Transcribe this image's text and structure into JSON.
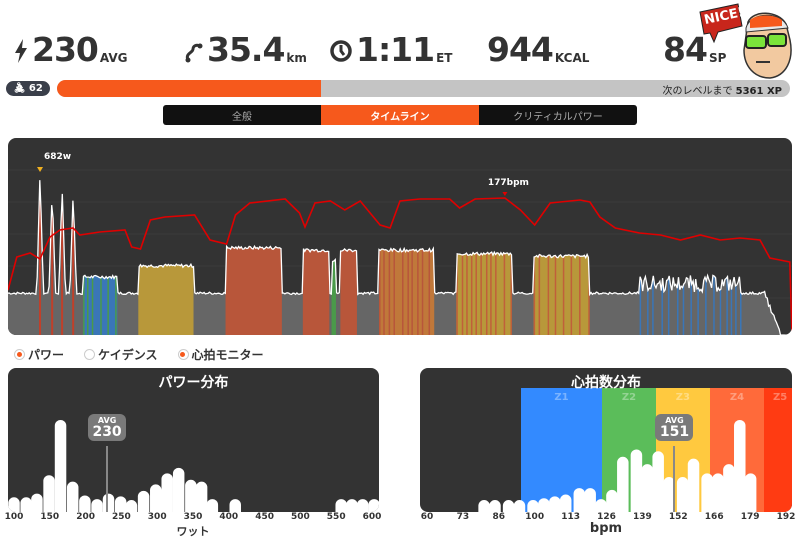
{
  "stats": [
    {
      "icon": "lightning-icon",
      "value": "230",
      "unit": "AVG"
    },
    {
      "icon": "route-icon",
      "value": "35.4",
      "unit": "km"
    },
    {
      "icon": "clock-icon",
      "value": "1:11",
      "unit": "ET"
    },
    {
      "icon": "",
      "value": "944",
      "unit": "KCAL"
    },
    {
      "icon": "",
      "value": "84",
      "unit": "SP"
    }
  ],
  "avatar_bubble": "NICE!",
  "level": {
    "value": "62",
    "icon": "cyclist-icon"
  },
  "xp": {
    "progress": 0.36,
    "label": "次のレベルまで",
    "value": "5361 XP"
  },
  "tabs": [
    {
      "label": "全般",
      "active": false
    },
    {
      "label": "タイムライン",
      "active": true
    },
    {
      "label": "クリティカルパワー",
      "active": false
    }
  ],
  "timeline": {
    "duration_min": 71,
    "peak_power_label": "682w",
    "peak_hr_label": "177bpm",
    "baseline_watts": 175,
    "sprints": [
      {
        "t": 2.9,
        "w": 682
      },
      {
        "t": 4.0,
        "w": 600
      },
      {
        "t": 4.9,
        "w": 620
      },
      {
        "t": 5.9,
        "w": 590
      }
    ],
    "blocks": [
      {
        "start": 6.8,
        "end": 9.9,
        "w": 243,
        "zone": "#3a76b8",
        "stripe": "#4a9a4a"
      },
      {
        "start": 11.8,
        "end": 16.8,
        "w": 290,
        "zone": "#b8983a"
      },
      {
        "start": 19.7,
        "end": 24.8,
        "w": 365,
        "zone": "#b8563a"
      },
      {
        "start": 26.7,
        "end": 29.1,
        "w": 355,
        "zone": "#b8563a"
      },
      {
        "start": 29.3,
        "end": 29.7,
        "w": 310,
        "zone": "#4a9a4a"
      },
      {
        "start": 30.1,
        "end": 31.6,
        "w": 355,
        "zone": "#b8563a"
      },
      {
        "start": 33.6,
        "end": 38.6,
        "w": 355,
        "zone": "#c0783a",
        "stripe": "#b8563a"
      },
      {
        "start": 40.6,
        "end": 45.6,
        "w": 340,
        "zone": "#b8983a",
        "stripe": "#c0603a"
      },
      {
        "start": 47.6,
        "end": 52.6,
        "w": 330,
        "zone": "#b8983a",
        "stripe": "#c0603a"
      },
      {
        "start": 57.2,
        "end": 66.3,
        "w": 215,
        "zone": "#666",
        "stripe": "#3a76b8",
        "noise": true
      }
    ],
    "end_drop_min": 68.5,
    "hr_series": [
      [
        0,
        85
      ],
      [
        0.8,
        118
      ],
      [
        2.0,
        122
      ],
      [
        2.9,
        116
      ],
      [
        3.8,
        138
      ],
      [
        4.7,
        145
      ],
      [
        5.9,
        147
      ],
      [
        6.5,
        140
      ],
      [
        8.3,
        143
      ],
      [
        10.6,
        145
      ],
      [
        11.2,
        128
      ],
      [
        12.0,
        126
      ],
      [
        12.9,
        155
      ],
      [
        14.2,
        158
      ],
      [
        16.9,
        160
      ],
      [
        18.3,
        135
      ],
      [
        19.8,
        131
      ],
      [
        20.6,
        160
      ],
      [
        21.9,
        172
      ],
      [
        25.1,
        176
      ],
      [
        26.4,
        162
      ],
      [
        26.9,
        148
      ],
      [
        27.8,
        172
      ],
      [
        29.2,
        174
      ],
      [
        30.5,
        165
      ],
      [
        31.9,
        174
      ],
      [
        33.7,
        150
      ],
      [
        34.6,
        147
      ],
      [
        35.5,
        174
      ],
      [
        37.3,
        176
      ],
      [
        40.0,
        176
      ],
      [
        40.9,
        167
      ],
      [
        42.3,
        176
      ],
      [
        45.0,
        177
      ],
      [
        46.4,
        165
      ],
      [
        47.7,
        150
      ],
      [
        49.1,
        172
      ],
      [
        51.8,
        175
      ],
      [
        52.7,
        173
      ],
      [
        53.6,
        158
      ],
      [
        55.0,
        147
      ],
      [
        57.2,
        142
      ],
      [
        59.1,
        140
      ],
      [
        60.9,
        135
      ],
      [
        62.7,
        140
      ],
      [
        64.5,
        135
      ],
      [
        66.3,
        137
      ],
      [
        68.1,
        135
      ],
      [
        69.0,
        117
      ],
      [
        69.9,
        115
      ],
      [
        70.8,
        113
      ],
      [
        71,
        40
      ]
    ],
    "colors": {
      "hr": "#e00000",
      "power": "#ffffff",
      "fill": "#666666"
    }
  },
  "legend": [
    {
      "label": "パワー",
      "checked": true
    },
    {
      "label": "ケイデンス",
      "checked": false
    },
    {
      "label": "心拍モニター",
      "checked": true
    }
  ],
  "power_dist": {
    "title": "パワー分布",
    "xlabel": "ワット",
    "ticks": [
      "100",
      "150",
      "200",
      "250",
      "300",
      "350",
      "400",
      "450",
      "500",
      "550",
      "600"
    ],
    "avg_label": "AVG",
    "avg": "230",
    "bins": [
      [
        100,
        0.16
      ],
      [
        117,
        0.16
      ],
      [
        132,
        0.2
      ],
      [
        149,
        0.4
      ],
      [
        165,
        1.0
      ],
      [
        182,
        0.33
      ],
      [
        199,
        0.18
      ],
      [
        216,
        0.14
      ],
      [
        232,
        0.2
      ],
      [
        249,
        0.17
      ],
      [
        264,
        0.13
      ],
      [
        281,
        0.23
      ],
      [
        298,
        0.3
      ],
      [
        314,
        0.42
      ],
      [
        330,
        0.48
      ],
      [
        347,
        0.35
      ],
      [
        362,
        0.33
      ],
      [
        377,
        0.14
      ],
      [
        409,
        0.14
      ],
      [
        557,
        0.14
      ],
      [
        572,
        0.14
      ],
      [
        587,
        0.14
      ],
      [
        603,
        0.14
      ]
    ]
  },
  "hr_dist": {
    "title": "心拍数分布",
    "xlabel": "bpm",
    "ticks": [
      "60",
      "73",
      "86",
      "100",
      "113",
      "126",
      "139",
      "152",
      "166",
      "179",
      "192"
    ],
    "avg_label": "AVG",
    "avg": "151",
    "zones": [
      {
        "label": "Z1",
        "from": 94.6,
        "to": 124.3,
        "color": "#338aff"
      },
      {
        "label": "Z2",
        "from": 124.3,
        "to": 144.2,
        "color": "#5bbd5a"
      },
      {
        "label": "Z3",
        "from": 144.2,
        "to": 164,
        "color": "#ffc93f"
      },
      {
        "label": "Z4",
        "from": 164,
        "to": 184,
        "color": "#ff6a3a"
      },
      {
        "label": "Z5",
        "from": 184,
        "to": 192,
        "color": "#ff3b12"
      }
    ],
    "bins": [
      [
        81,
        0.13
      ],
      [
        85,
        0.13
      ],
      [
        90,
        0.13
      ],
      [
        94,
        0.13
      ],
      [
        99,
        0.13
      ],
      [
        103,
        0.15
      ],
      [
        107,
        0.17
      ],
      [
        111,
        0.19
      ],
      [
        116,
        0.26
      ],
      [
        120,
        0.26
      ],
      [
        124,
        0.14
      ],
      [
        128,
        0.24
      ],
      [
        132,
        0.6
      ],
      [
        137,
        0.68
      ],
      [
        141,
        0.52
      ],
      [
        145,
        0.66
      ],
      [
        149,
        0.38
      ],
      [
        154,
        0.38
      ],
      [
        158,
        0.58
      ],
      [
        163,
        0.42
      ],
      [
        167,
        0.42
      ],
      [
        171,
        0.52
      ],
      [
        175,
        1.0
      ],
      [
        179,
        0.42
      ]
    ]
  }
}
